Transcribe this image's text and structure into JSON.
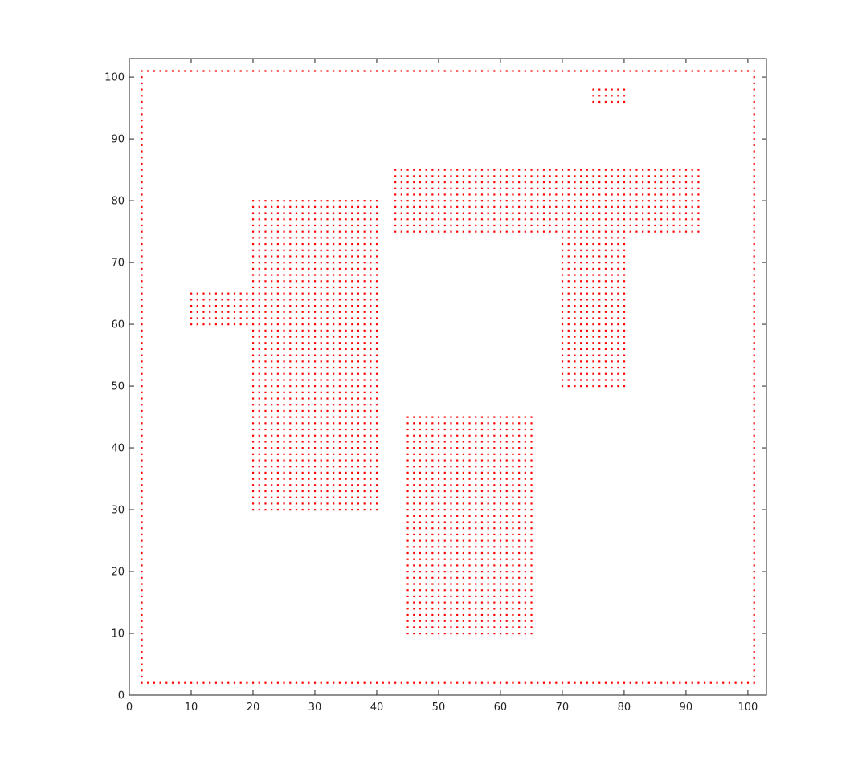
{
  "chart_data": {
    "type": "scatter",
    "title": "",
    "xlabel": "",
    "ylabel": "",
    "xlim": [
      0,
      103
    ],
    "ylim": [
      0,
      103
    ],
    "xticks": [
      0,
      10,
      20,
      30,
      40,
      50,
      60,
      70,
      80,
      90,
      100
    ],
    "yticks": [
      0,
      10,
      20,
      30,
      40,
      50,
      60,
      70,
      80,
      90,
      100
    ],
    "xtick_labels": [
      "0",
      "10",
      "20",
      "30",
      "40",
      "50",
      "60",
      "70",
      "80",
      "90",
      "100"
    ],
    "ytick_labels": [
      "0",
      "10",
      "20",
      "30",
      "40",
      "50",
      "60",
      "70",
      "80",
      "90",
      "100"
    ],
    "grid": false,
    "marker_color": "#ff0000",
    "axis_color": "#222222",
    "point_spacing": 1,
    "boundary": {
      "xmin": 2,
      "xmax": 101,
      "ymin": 2,
      "ymax": 101
    },
    "filled_regions": [
      {
        "xmin": 20,
        "xmax": 40,
        "ymin": 30,
        "ymax": 80
      },
      {
        "xmin": 10,
        "xmax": 20,
        "ymin": 60,
        "ymax": 65
      },
      {
        "xmin": 45,
        "xmax": 65,
        "ymin": 10,
        "ymax": 45
      },
      {
        "xmin": 43,
        "xmax": 92,
        "ymin": 75,
        "ymax": 85
      },
      {
        "xmin": 70,
        "xmax": 80,
        "ymin": 50,
        "ymax": 75
      },
      {
        "xmin": 75,
        "xmax": 80,
        "ymin": 96,
        "ymax": 98
      }
    ]
  }
}
